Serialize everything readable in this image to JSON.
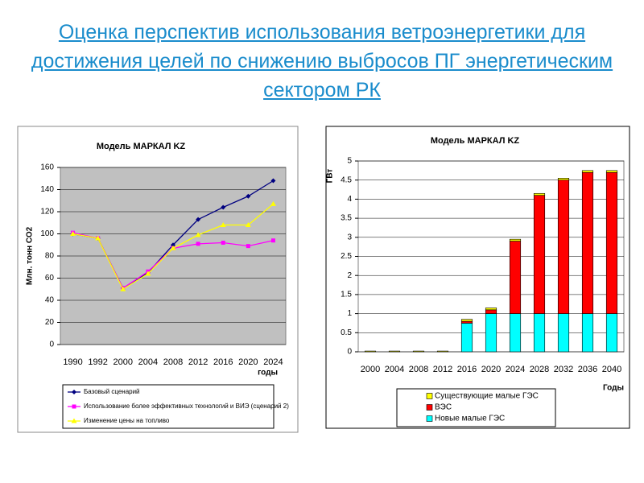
{
  "title": "Оценка перспектив использования ветроэнергетики для достижения целей по снижению выбросов ПГ энергетическим сектором РК",
  "chart_data": [
    {
      "type": "line",
      "title": "Модель МАРКАЛ KZ",
      "y_label": "Млн. тонн СО2",
      "x_label": "годы",
      "categories": [
        "1990",
        "1992",
        "2000",
        "2004",
        "2008",
        "2012",
        "2016",
        "2020",
        "2024"
      ],
      "series": [
        {
          "name": "Базовый сценарий",
          "color": "#000080",
          "marker": "diamond",
          "values": [
            100,
            96,
            51,
            65,
            90,
            113,
            124,
            134,
            148
          ]
        },
        {
          "name": "Использование  более эффективных технологий и ВИЭ (сценарий 2)",
          "color": "#ff00ff",
          "marker": "square",
          "values": [
            101,
            96,
            51,
            66,
            87,
            91,
            92,
            89,
            94
          ]
        },
        {
          "name": "Изменение цены на топливо",
          "color": "#ffff00",
          "marker": "triangle",
          "values": [
            100,
            96,
            50,
            64,
            87,
            99,
            108,
            108,
            127
          ]
        }
      ],
      "ylim": [
        0,
        160
      ],
      "yticks": [
        0,
        20,
        40,
        60,
        80,
        100,
        120,
        140,
        160
      ],
      "grid": true,
      "plot_background": "#c0c0c0"
    },
    {
      "type": "stacked-bar",
      "title": "Модель МАРКАЛ KZ",
      "y_label": "ГВт",
      "x_label": "Годы",
      "categories": [
        "2000",
        "2004",
        "2008",
        "2012",
        "2016",
        "2020",
        "2024",
        "2028",
        "2032",
        "2036",
        "2040"
      ],
      "series": [
        {
          "name": "Существующие малые ГЭС",
          "color": "#ffff00",
          "values": [
            0.02,
            0.02,
            0.02,
            0.02,
            0.05,
            0.05,
            0.05,
            0.05,
            0.05,
            0.05,
            0.05
          ]
        },
        {
          "name": "ВЭС",
          "color": "#ff0000",
          "values": [
            0,
            0,
            0,
            0,
            0.05,
            0.1,
            1.9,
            3.1,
            3.5,
            3.7,
            3.7
          ]
        },
        {
          "name": "Новые малые ГЭС",
          "color": "#00ffff",
          "values": [
            0,
            0,
            0,
            0,
            0.75,
            1,
            1,
            1,
            1,
            1,
            1
          ]
        }
      ],
      "ylim": [
        0,
        5
      ],
      "yticks": [
        0,
        0.5,
        1,
        1.5,
        2,
        2.5,
        3,
        3.5,
        4,
        4.5,
        5
      ],
      "grid": true,
      "plot_background": "#ffffff"
    }
  ]
}
